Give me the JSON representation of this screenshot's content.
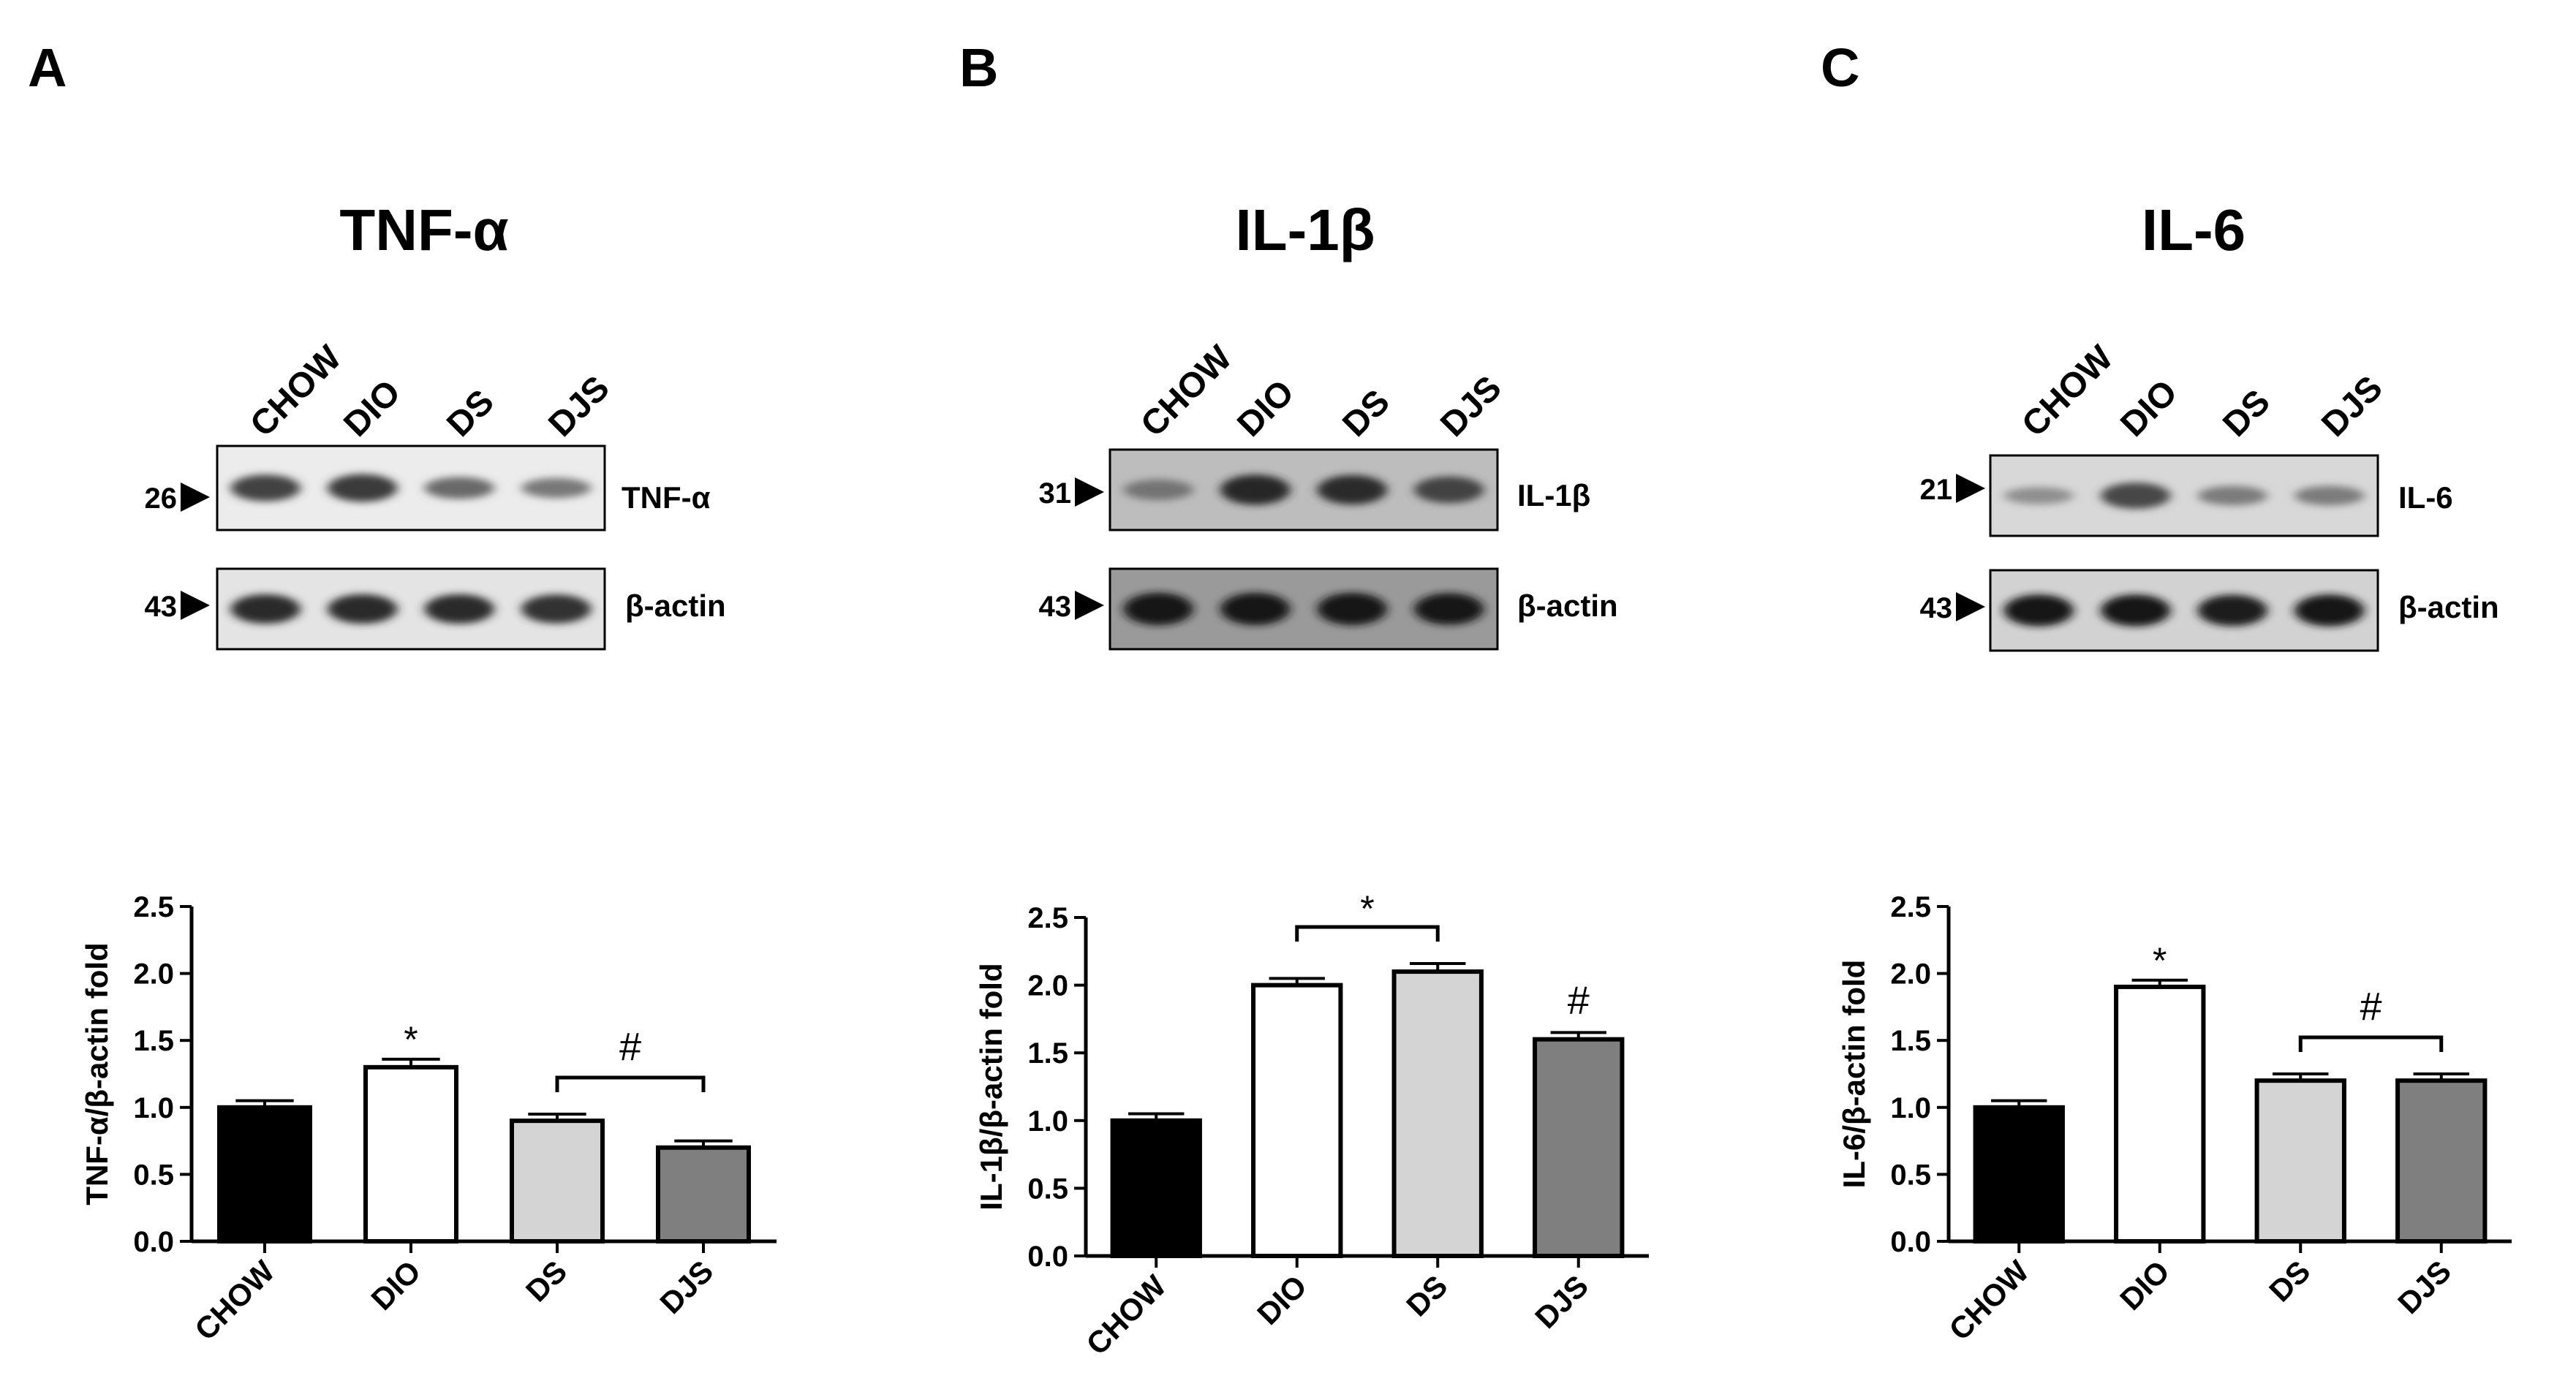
{
  "panels": [
    {
      "letter": "A",
      "title": "TNF-α",
      "lanes": [
        "CHOW",
        "DIO",
        "DS",
        "DJS"
      ],
      "blots": [
        {
          "marker": "26",
          "label": "TNF-α",
          "intensity": [
            0.7,
            0.75,
            0.5,
            0.42
          ],
          "bg": "#ececec"
        },
        {
          "marker": "43",
          "label": "β-actin",
          "intensity": [
            0.82,
            0.82,
            0.82,
            0.8
          ],
          "bg": "#e4e4e4"
        }
      ]
    },
    {
      "letter": "B",
      "title": "IL-1β",
      "lanes": [
        "CHOW",
        "DIO",
        "DS",
        "DJS"
      ],
      "blots": [
        {
          "marker": "31",
          "label": "IL-1β",
          "intensity": [
            0.45,
            0.85,
            0.82,
            0.7
          ],
          "bg": "#bdbdbd"
        },
        {
          "marker": "43",
          "label": "β-actin",
          "intensity": [
            0.95,
            0.95,
            0.95,
            0.92
          ],
          "bg": "#9a9a9a"
        }
      ]
    },
    {
      "letter": "C",
      "title": "IL-6",
      "lanes": [
        "CHOW",
        "DIO",
        "DS",
        "DJS"
      ],
      "blots": [
        {
          "marker": "21",
          "label": "IL-6",
          "intensity": [
            0.3,
            0.68,
            0.4,
            0.4
          ],
          "bg": "#d8d8d8"
        },
        {
          "marker": "43",
          "label": "β-actin",
          "intensity": [
            0.92,
            0.92,
            0.9,
            0.92
          ],
          "bg": "#d2d2d2"
        }
      ]
    }
  ],
  "chart_data": [
    {
      "type": "bar",
      "categories": [
        "CHOW",
        "DIO",
        "DS",
        "DJS"
      ],
      "values": [
        1.0,
        1.3,
        0.9,
        0.7
      ],
      "errors": [
        0.05,
        0.06,
        0.05,
        0.05
      ],
      "colors": [
        "#000000",
        "#ffffff",
        "#d4d4d4",
        "#7f7f7f"
      ],
      "ylabel": "TNF-α/β-actin fold",
      "ylim": [
        0,
        2.5
      ],
      "yticks": [
        "0.0",
        "0.5",
        "1.0",
        "1.5",
        "2.0",
        "2.5"
      ],
      "annotations": [
        {
          "text": "*",
          "over": [
            1
          ]
        },
        {
          "text": "#",
          "over": [
            2,
            3
          ],
          "bracket": true
        }
      ]
    },
    {
      "type": "bar",
      "categories": [
        "CHOW",
        "DIO",
        "DS",
        "DJS"
      ],
      "values": [
        1.0,
        2.0,
        2.1,
        1.6
      ],
      "errors": [
        0.05,
        0.05,
        0.06,
        0.05
      ],
      "colors": [
        "#000000",
        "#ffffff",
        "#d4d4d4",
        "#7f7f7f"
      ],
      "ylabel": "IL-1β/β-actin fold",
      "ylim": [
        0,
        2.5
      ],
      "yticks": [
        "0.0",
        "0.5",
        "1.0",
        "1.5",
        "2.0",
        "2.5"
      ],
      "annotations": [
        {
          "text": "*",
          "over": [
            1,
            2
          ],
          "bracket": true
        },
        {
          "text": "#",
          "over": [
            3
          ]
        }
      ]
    },
    {
      "type": "bar",
      "categories": [
        "CHOW",
        "DIO",
        "DS",
        "DJS"
      ],
      "values": [
        1.0,
        1.9,
        1.2,
        1.2
      ],
      "errors": [
        0.05,
        0.05,
        0.05,
        0.05
      ],
      "colors": [
        "#000000",
        "#ffffff",
        "#d4d4d4",
        "#7f7f7f"
      ],
      "ylabel": "IL-6/β-actin fold",
      "ylim": [
        0,
        2.5
      ],
      "yticks": [
        "0.0",
        "0.5",
        "1.0",
        "1.5",
        "2.0",
        "2.5"
      ],
      "annotations": [
        {
          "text": "*",
          "over": [
            1
          ]
        },
        {
          "text": "#",
          "over": [
            2,
            3
          ],
          "bracket": true
        }
      ]
    }
  ]
}
